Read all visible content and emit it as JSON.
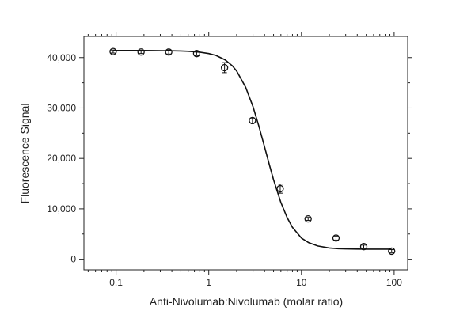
{
  "colors": {
    "axis": "#222222",
    "series": "#111111",
    "marker_fill": "#ffffff"
  },
  "chart_data": {
    "type": "scatter",
    "title": "",
    "xlabel": "Anti-Nivolumab:Nivolumab (molar ratio)",
    "ylabel": "Fluorescence Signal",
    "xscale": "log",
    "xlim": [
      0.045,
      140
    ],
    "ylim": [
      -2100,
      44200
    ],
    "grid": false,
    "legend": "none",
    "x_ticks": [
      {
        "value": 0.1,
        "label": "0.1"
      },
      {
        "value": 1,
        "label": "1"
      },
      {
        "value": 10,
        "label": "10"
      },
      {
        "value": 100,
        "label": "100"
      }
    ],
    "y_ticks": [
      {
        "value": 0,
        "label": "0"
      },
      {
        "value": 10000,
        "label": "10,000"
      },
      {
        "value": 20000,
        "label": "20,000"
      },
      {
        "value": 30000,
        "label": "30,000"
      },
      {
        "value": 40000,
        "label": "40,000"
      }
    ],
    "series": [
      {
        "style": "markers",
        "marker": "open-circle",
        "x": [
          0.093,
          0.186,
          0.37,
          0.74,
          1.48,
          2.96,
          5.9,
          11.8,
          23.6,
          47,
          94
        ],
        "y": [
          41200,
          41100,
          41100,
          40800,
          38000,
          27500,
          14000,
          8000,
          4200,
          2500,
          1600
        ],
        "y_error": [
          300,
          300,
          400,
          400,
          1000,
          500,
          900,
          300,
          400,
          300,
          300
        ]
      },
      {
        "style": "line",
        "fit": "4PL",
        "x": [
          0.093,
          0.12,
          0.15,
          0.2,
          0.25,
          0.3,
          0.4,
          0.5,
          0.6,
          0.8,
          1.0,
          1.2,
          1.5,
          1.8,
          2.0,
          2.5,
          3.0,
          3.5,
          4.0,
          4.5,
          5.0,
          6.0,
          7.0,
          8.0,
          10,
          12,
          15,
          20,
          25,
          30,
          40,
          50,
          60,
          80,
          94
        ],
        "y": [
          41400,
          41400,
          41400,
          41400,
          41390,
          41380,
          41350,
          41310,
          41250,
          41070,
          40800,
          40420,
          39550,
          38340,
          37340,
          34130,
          30270,
          26180,
          22270,
          18780,
          15790,
          11250,
          8280,
          6330,
          4190,
          3270,
          2620,
          2230,
          2090,
          2040,
          2010,
          2000,
          2000,
          2000,
          2000
        ]
      }
    ]
  }
}
